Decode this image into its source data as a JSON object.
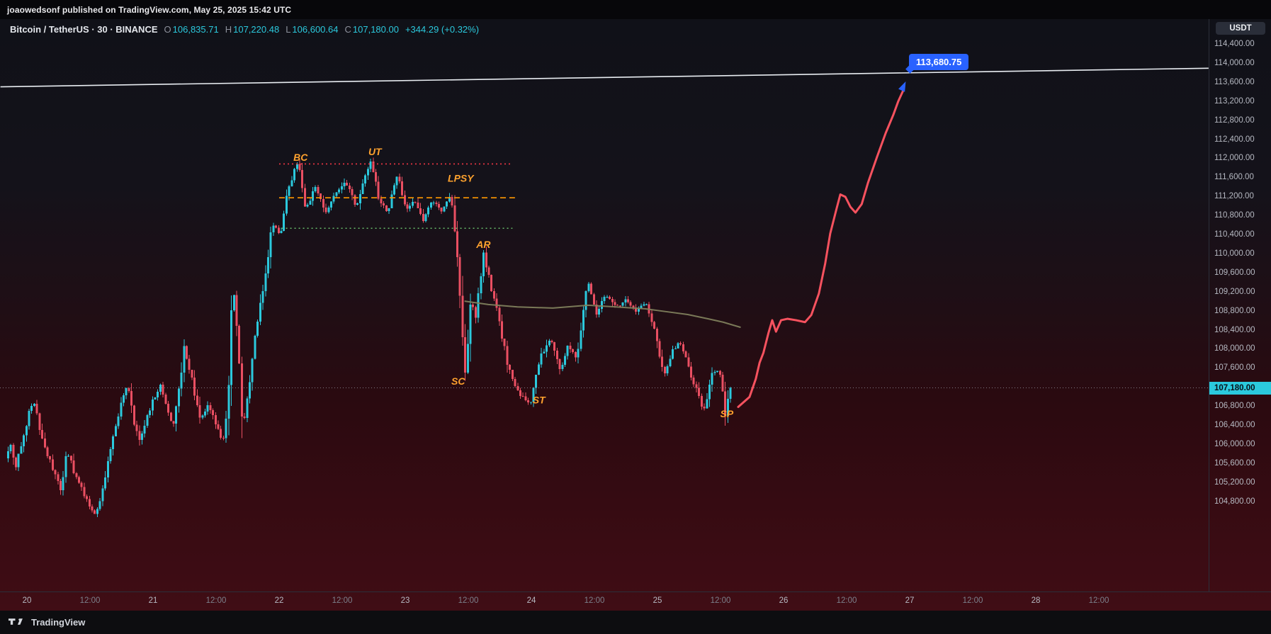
{
  "publish_bar": {
    "text": "joaowedsonf published on TradingView.com, May 25, 2025 15:42 UTC"
  },
  "symbol": {
    "title": "Bitcoin / TetherUS · 30 · BINANCE",
    "ohlc": [
      {
        "key": "O",
        "value": "106,835.71"
      },
      {
        "key": "H",
        "value": "107,220.48"
      },
      {
        "key": "L",
        "value": "106,600.64"
      },
      {
        "key": "C",
        "value": "107,180.00"
      }
    ],
    "change": "+344.29 (+0.32%)"
  },
  "footer": {
    "brand": "TradingView"
  },
  "chart_data": {
    "type": "candlestick",
    "title": "Bitcoin / TetherUS 30-minute, BINANCE",
    "interval_minutes": 30,
    "last_price": 107180.0,
    "target_price_label": "113,680.75",
    "price_axis": {
      "max": 114400,
      "min": 104800,
      "step": 400,
      "currency": "USDT",
      "last_price": 107180,
      "last_price_label": "107,180.00"
    },
    "time_axis": {
      "first_day": 20,
      "days": [
        "20",
        "21",
        "22",
        "23",
        "24",
        "25",
        "26",
        "27",
        "28"
      ],
      "intraday_label": "12:00"
    },
    "price_path_waypoints": [
      [
        19.84,
        105700
      ],
      [
        19.88,
        106000
      ],
      [
        19.92,
        105500
      ],
      [
        19.98,
        106200
      ],
      [
        20.06,
        106950
      ],
      [
        20.13,
        106100
      ],
      [
        20.2,
        105600
      ],
      [
        20.28,
        105000
      ],
      [
        20.33,
        105850
      ],
      [
        20.4,
        105300
      ],
      [
        20.5,
        104750
      ],
      [
        20.56,
        104500
      ],
      [
        20.63,
        105300
      ],
      [
        20.7,
        106300
      ],
      [
        20.81,
        107280
      ],
      [
        20.86,
        106500
      ],
      [
        20.9,
        106050
      ],
      [
        21.0,
        106850
      ],
      [
        21.07,
        107220
      ],
      [
        21.13,
        106700
      ],
      [
        21.17,
        106330
      ],
      [
        21.26,
        108050
      ],
      [
        21.33,
        107200
      ],
      [
        21.38,
        106480
      ],
      [
        21.45,
        106800
      ],
      [
        21.52,
        106350
      ],
      [
        21.56,
        105950
      ],
      [
        21.6,
        106650
      ],
      [
        21.64,
        109450
      ],
      [
        21.68,
        108400
      ],
      [
        21.72,
        106200
      ],
      [
        21.78,
        107400
      ],
      [
        21.84,
        108600
      ],
      [
        21.9,
        109600
      ],
      [
        21.96,
        110650
      ],
      [
        22.02,
        110350
      ],
      [
        22.08,
        111350
      ],
      [
        22.16,
        111920
      ],
      [
        22.22,
        110950
      ],
      [
        22.3,
        111400
      ],
      [
        22.38,
        110850
      ],
      [
        22.46,
        111250
      ],
      [
        22.54,
        111500
      ],
      [
        22.62,
        111000
      ],
      [
        22.7,
        111650
      ],
      [
        22.74,
        111990
      ],
      [
        22.8,
        111150
      ],
      [
        22.87,
        110900
      ],
      [
        22.95,
        111650
      ],
      [
        23.02,
        110850
      ],
      [
        23.08,
        111150
      ],
      [
        23.15,
        110700
      ],
      [
        23.22,
        111100
      ],
      [
        23.3,
        110900
      ],
      [
        23.37,
        111280
      ],
      [
        23.43,
        109800
      ],
      [
        23.48,
        107420
      ],
      [
        23.53,
        109000
      ],
      [
        23.57,
        108700
      ],
      [
        23.63,
        109950
      ],
      [
        23.7,
        109200
      ],
      [
        23.76,
        108500
      ],
      [
        23.83,
        107600
      ],
      [
        23.9,
        107100
      ],
      [
        24.0,
        106820
      ],
      [
        24.08,
        107800
      ],
      [
        24.16,
        108250
      ],
      [
        24.24,
        107550
      ],
      [
        24.3,
        108050
      ],
      [
        24.37,
        107800
      ],
      [
        24.46,
        109420
      ],
      [
        24.53,
        108750
      ],
      [
        24.6,
        109150
      ],
      [
        24.68,
        108850
      ],
      [
        24.76,
        109050
      ],
      [
        24.84,
        108800
      ],
      [
        24.92,
        108950
      ],
      [
        25.0,
        108300
      ],
      [
        25.06,
        107380
      ],
      [
        25.13,
        107950
      ],
      [
        25.19,
        108150
      ],
      [
        25.26,
        107550
      ],
      [
        25.33,
        107050
      ],
      [
        25.38,
        106700
      ],
      [
        25.44,
        107450
      ],
      [
        25.5,
        107560
      ],
      [
        25.55,
        106630
      ],
      [
        25.58,
        107180
      ]
    ],
    "projection_line": [
      [
        25.64,
        106780
      ],
      [
        25.73,
        106990
      ],
      [
        25.78,
        107370
      ],
      [
        25.81,
        107710
      ],
      [
        25.84,
        107915
      ],
      [
        25.88,
        108330
      ],
      [
        25.91,
        108600
      ],
      [
        25.94,
        108360
      ],
      [
        25.98,
        108600
      ],
      [
        26.03,
        108630
      ],
      [
        26.1,
        108600
      ],
      [
        26.17,
        108560
      ],
      [
        26.22,
        108710
      ],
      [
        26.28,
        109160
      ],
      [
        26.33,
        109790
      ],
      [
        26.37,
        110420
      ],
      [
        26.42,
        110940
      ],
      [
        26.45,
        111240
      ],
      [
        26.49,
        111190
      ],
      [
        26.53,
        110980
      ],
      [
        26.57,
        110860
      ],
      [
        26.62,
        111040
      ],
      [
        26.67,
        111490
      ],
      [
        26.74,
        112020
      ],
      [
        26.81,
        112530
      ],
      [
        26.87,
        112910
      ],
      [
        26.91,
        113200
      ],
      [
        26.95,
        113430
      ]
    ],
    "trendline": {
      "start": [
        19.79,
        113500
      ],
      "end": [
        29.37,
        113890
      ]
    },
    "moving_average": [
      [
        23.47,
        109000
      ],
      [
        23.66,
        108930
      ],
      [
        23.89,
        108880
      ],
      [
        24.17,
        108855
      ],
      [
        24.45,
        108915
      ],
      [
        24.67,
        108880
      ],
      [
        24.9,
        108840
      ],
      [
        25.07,
        108780
      ],
      [
        25.24,
        108720
      ],
      [
        25.4,
        108630
      ],
      [
        25.52,
        108560
      ],
      [
        25.66,
        108450
      ]
    ],
    "range_lines": [
      {
        "price": 111880,
        "from_day": 22.0,
        "to_day": 23.85,
        "style": "dotted",
        "color": "#f23645"
      },
      {
        "price": 111170,
        "from_day": 22.0,
        "to_day": 23.87,
        "style": "dashed",
        "color": "#ff9800"
      },
      {
        "price": 110530,
        "from_day": 22.02,
        "to_day": 23.85,
        "style": "dotted",
        "color": "#66bb6a"
      }
    ],
    "annotations": [
      {
        "label": "BC",
        "day": 22.17,
        "price": 112020
      },
      {
        "label": "UT",
        "day": 22.76,
        "price": 112140
      },
      {
        "label": "LPSY",
        "day": 23.44,
        "price": 111580
      },
      {
        "label": "AR",
        "day": 23.62,
        "price": 110190
      },
      {
        "label": "SC",
        "day": 23.42,
        "price": 107320
      },
      {
        "label": "ST",
        "day": 24.06,
        "price": 106930
      },
      {
        "label": "SP",
        "day": 25.55,
        "price": 106640
      }
    ],
    "colors": {
      "up": "#2bc9dd",
      "down": "#ea4f62",
      "projection": "#f7525f",
      "trendline": "#e9edf2",
      "ma": "#80805c",
      "annotation": "#ffa22e",
      "last_price_line": "#9aa0ab",
      "last_price_bg": "#2bc9dd",
      "target_bg": "#2962ff"
    }
  }
}
